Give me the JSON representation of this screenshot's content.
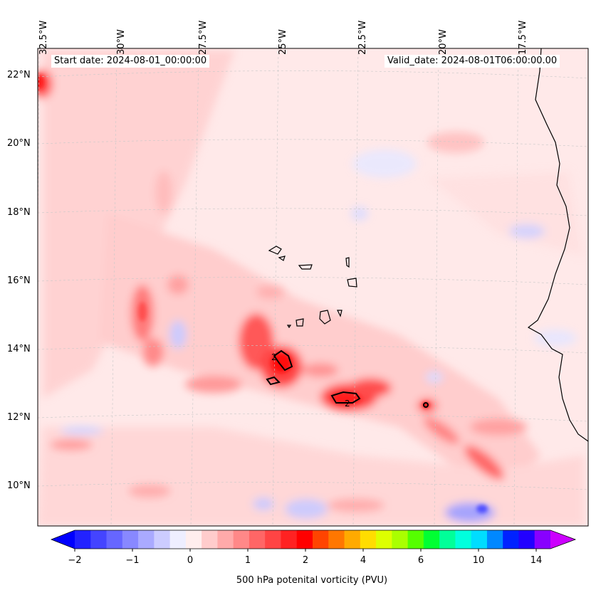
{
  "map": {
    "start_label": "Start date: 2024-08-01_00:00:00",
    "valid_label": "Valid_date: 2024-08-01T06:00:00.00",
    "lon_labels": [
      "32.5°W",
      "30°W",
      "27.5°W",
      "25°W",
      "22.5°W",
      "20°W",
      "17.5°W"
    ],
    "lat_labels": [
      "22°N",
      "20°N",
      "18°N",
      "16°N",
      "14°N",
      "12°N",
      "10°N"
    ],
    "contour_labels": [
      "2",
      "2"
    ]
  },
  "colorbar": {
    "title": "500 hPa potenital vorticity (PVU)",
    "ticks": [
      "−2",
      "−1",
      "0",
      "1",
      "2",
      "4",
      "6",
      "10",
      "14"
    ],
    "colors": [
      "#2222ff",
      "#4444ff",
      "#6666ff",
      "#8888ff",
      "#aaaaff",
      "#ccccff",
      "#eeeeff",
      "#ffeeee",
      "#ffcccc",
      "#ffaaaa",
      "#ff8888",
      "#ff6666",
      "#ff4444",
      "#ff2222",
      "#ff0000",
      "#ff4400",
      "#ff7700",
      "#ffaa00",
      "#ffdd00",
      "#ddff00",
      "#aaff00",
      "#55ff00",
      "#00ff33",
      "#00ff99",
      "#00ffdd",
      "#00ddff",
      "#0088ff",
      "#0022ff",
      "#2200ff",
      "#8800ff"
    ],
    "under_color": "#0000ff",
    "over_color": "#cc00ff"
  }
}
